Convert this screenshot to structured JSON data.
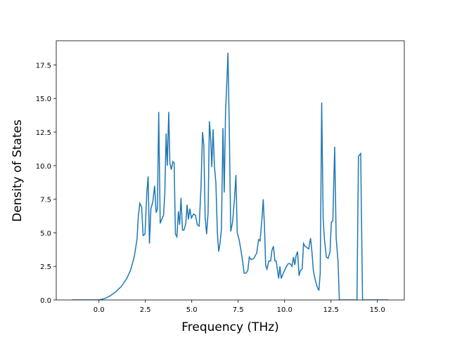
{
  "chart_data": {
    "type": "line",
    "xlabel": "Frequency (THz)",
    "ylabel": "Density of States",
    "color": "#1f77b4",
    "x": [
      -1.45,
      0.0,
      0.3,
      0.6,
      0.9,
      1.2,
      1.5,
      1.7,
      1.9,
      2.05,
      2.12,
      2.2,
      2.3,
      2.38,
      2.48,
      2.58,
      2.65,
      2.72,
      2.8,
      2.9,
      3.0,
      3.08,
      3.15,
      3.22,
      3.3,
      3.38,
      3.48,
      3.55,
      3.62,
      3.68,
      3.76,
      3.82,
      3.9,
      3.98,
      4.05,
      4.12,
      4.2,
      4.28,
      4.35,
      4.42,
      4.5,
      4.58,
      4.68,
      4.75,
      4.82,
      4.9,
      4.98,
      5.1,
      5.2,
      5.3,
      5.4,
      5.5,
      5.58,
      5.65,
      5.72,
      5.8,
      5.88,
      5.95,
      6.02,
      6.08,
      6.15,
      6.22,
      6.3,
      6.38,
      6.45,
      6.52,
      6.6,
      6.68,
      6.75,
      6.82,
      6.9,
      6.95,
      7.02,
      7.1,
      7.2,
      7.3,
      7.38,
      7.45,
      7.55,
      7.65,
      7.75,
      7.82,
      7.92,
      8.02,
      8.1,
      8.2,
      8.35,
      8.5,
      8.6,
      8.68,
      8.78,
      8.85,
      8.92,
      8.98,
      9.05,
      9.15,
      9.25,
      9.32,
      9.4,
      9.48,
      9.55,
      9.62,
      9.68,
      9.75,
      9.82,
      9.9,
      10.0,
      10.1,
      10.2,
      10.3,
      10.4,
      10.48,
      10.55,
      10.62,
      10.7,
      10.78,
      10.85,
      10.95,
      11.02,
      11.1,
      11.2,
      11.3,
      11.4,
      11.48,
      11.55,
      11.65,
      11.75,
      11.85,
      11.92,
      12.0,
      12.08,
      12.15,
      12.25,
      12.35,
      12.45,
      12.52,
      12.6,
      12.7,
      12.78,
      12.88,
      12.95,
      13.9,
      13.98,
      14.1,
      14.2,
      15.6
    ],
    "values": [
      0,
      0,
      0.1,
      0.3,
      0.6,
      1.0,
      1.6,
      2.2,
      3.2,
      4.5,
      6.2,
      7.2,
      6.9,
      4.8,
      4.9,
      8.0,
      9.2,
      4.2,
      6.8,
      7.3,
      8.5,
      6.5,
      6.8,
      14.0,
      5.7,
      6.0,
      6.3,
      8.0,
      12.4,
      10.0,
      14.0,
      10.2,
      9.7,
      10.3,
      10.2,
      4.9,
      4.7,
      6.6,
      5.6,
      7.6,
      5.2,
      5.2,
      5.7,
      7.1,
      6.0,
      6.8,
      6.1,
      6.4,
      6.3,
      5.6,
      5.5,
      8.5,
      12.5,
      11.5,
      6.2,
      4.9,
      6.5,
      13.3,
      12.0,
      9.9,
      12.7,
      10.0,
      8.7,
      5.0,
      3.6,
      4.2,
      5.3,
      12.8,
      8.0,
      14.0,
      16.5,
      18.4,
      13.0,
      5.1,
      5.8,
      7.5,
      9.3,
      5.0,
      4.5,
      3.7,
      2.8,
      2.0,
      2.0,
      2.2,
      3.2,
      3.0,
      3.1,
      3.5,
      4.5,
      4.4,
      6.0,
      7.5,
      5.4,
      2.6,
      2.3,
      2.9,
      2.9,
      3.7,
      4.0,
      2.9,
      2.9,
      2.2,
      1.6,
      2.5,
      1.6,
      1.9,
      2.2,
      2.5,
      2.7,
      2.7,
      2.5,
      3.2,
      2.6,
      3.3,
      3.6,
      1.8,
      2.2,
      2.3,
      4.2,
      4.0,
      3.9,
      3.8,
      4.6,
      3.5,
      2.2,
      1.5,
      1.0,
      0.7,
      2.0,
      14.7,
      6.0,
      4.5,
      3.2,
      3.1,
      3.6,
      5.8,
      5.9,
      11.4,
      4.6,
      2.9,
      0,
      0,
      10.7,
      10.9,
      0,
      0
    ],
    "xlim": [
      -2.3,
      16.45
    ],
    "ylim": [
      0,
      19.3
    ],
    "xticks": [
      {
        "value": 0,
        "label": "0.0"
      },
      {
        "value": 2.5,
        "label": "2.5"
      },
      {
        "value": 5,
        "label": "5.0"
      },
      {
        "value": 7.5,
        "label": "7.5"
      },
      {
        "value": 10,
        "label": "10.0"
      },
      {
        "value": 12.5,
        "label": "12.5"
      },
      {
        "value": 15,
        "label": "15.0"
      }
    ],
    "yticks": [
      {
        "value": 0,
        "label": "0.0"
      },
      {
        "value": 2.5,
        "label": "2.5"
      },
      {
        "value": 5,
        "label": "5.0"
      },
      {
        "value": 7.5,
        "label": "7.5"
      },
      {
        "value": 10,
        "label": "10.0"
      },
      {
        "value": 12.5,
        "label": "12.5"
      },
      {
        "value": 15,
        "label": "15.0"
      },
      {
        "value": 17.5,
        "label": "17.5"
      }
    ]
  }
}
